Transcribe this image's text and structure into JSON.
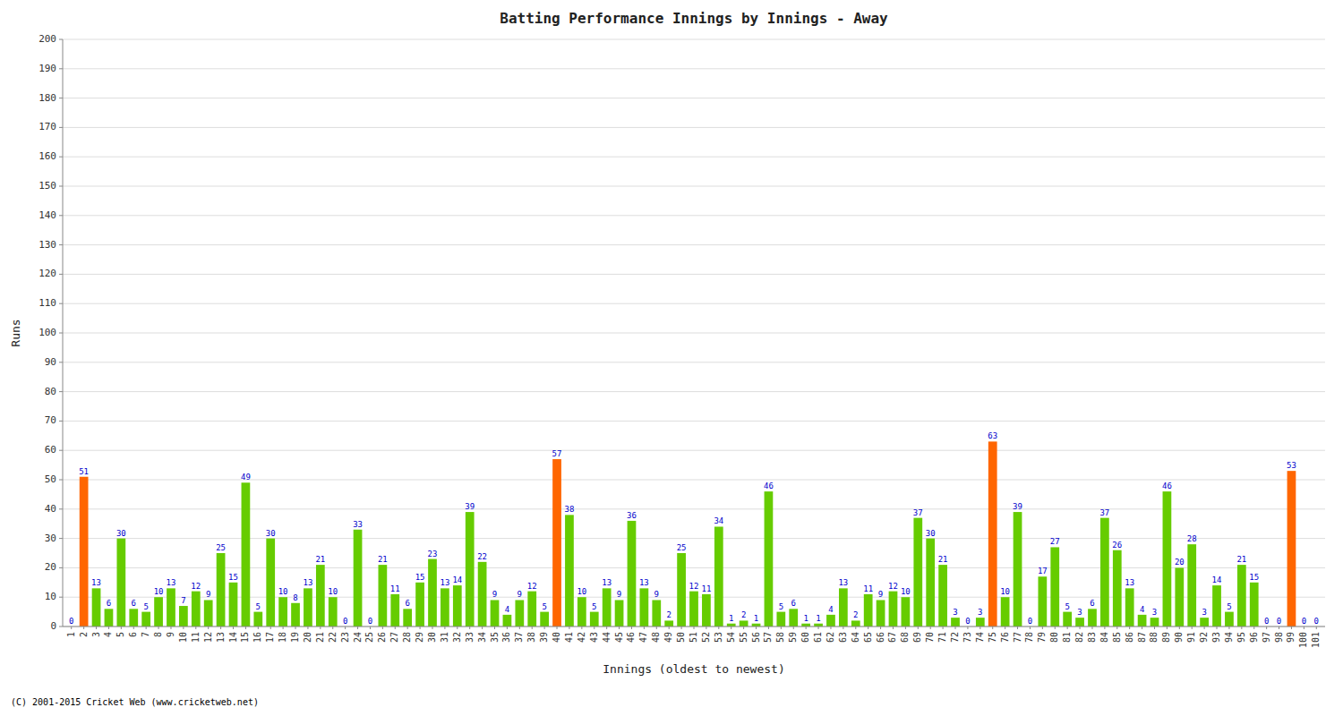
{
  "chart_data": {
    "type": "bar",
    "title": "Batting Performance Innings by Innings - Away",
    "xlabel": "Innings (oldest to newest)",
    "ylabel": "Runs",
    "annotations": [
      "(C) 2001-2015 Cricket Web (www.cricketweb.net)"
    ],
    "categories": [
      "1",
      "2",
      "3",
      "4",
      "5",
      "6",
      "7",
      "8",
      "9",
      "10",
      "11",
      "12",
      "13",
      "14",
      "15",
      "16",
      "17",
      "18",
      "19",
      "20",
      "21",
      "22",
      "23",
      "24",
      "25",
      "26",
      "27",
      "28",
      "29",
      "30",
      "31",
      "32",
      "33",
      "34",
      "35",
      "36",
      "37",
      "38",
      "39",
      "40",
      "41",
      "42",
      "43",
      "44",
      "45",
      "46",
      "47",
      "48",
      "49",
      "50",
      "51",
      "52",
      "53",
      "54",
      "55",
      "56",
      "57",
      "58",
      "59",
      "60",
      "61",
      "62",
      "63",
      "64",
      "65",
      "66",
      "67",
      "68",
      "69",
      "70",
      "71",
      "72",
      "73",
      "74",
      "75",
      "76",
      "77",
      "78",
      "79",
      "80",
      "81",
      "82",
      "83",
      "84",
      "85",
      "86",
      "87",
      "88",
      "89",
      "90",
      "91",
      "92",
      "93",
      "94",
      "95",
      "96",
      "97",
      "98",
      "99",
      "100",
      "101"
    ],
    "values": [
      0,
      51,
      13,
      6,
      30,
      6,
      5,
      10,
      13,
      7,
      12,
      9,
      25,
      15,
      49,
      5,
      30,
      10,
      8,
      13,
      21,
      10,
      0,
      33,
      0,
      21,
      11,
      6,
      15,
      23,
      13,
      14,
      39,
      22,
      9,
      4,
      9,
      12,
      5,
      57,
      38,
      10,
      5,
      13,
      9,
      36,
      13,
      9,
      2,
      25,
      12,
      11,
      34,
      1,
      2,
      1,
      46,
      5,
      6,
      1,
      1,
      4,
      13,
      2,
      11,
      9,
      12,
      10,
      37,
      30,
      21,
      3,
      0,
      3,
      63,
      10,
      39,
      0,
      17,
      27,
      5,
      3,
      6,
      37,
      26,
      13,
      4,
      3,
      46,
      20,
      28,
      3,
      14,
      5,
      21,
      15,
      0,
      0,
      53,
      0,
      0
    ],
    "colors": [
      "#66cc00",
      "#ff6600",
      "#66cc00",
      "#66cc00",
      "#66cc00",
      "#66cc00",
      "#66cc00",
      "#66cc00",
      "#66cc00",
      "#66cc00",
      "#66cc00",
      "#66cc00",
      "#66cc00",
      "#66cc00",
      "#66cc00",
      "#66cc00",
      "#66cc00",
      "#66cc00",
      "#66cc00",
      "#66cc00",
      "#66cc00",
      "#66cc00",
      "#66cc00",
      "#66cc00",
      "#ff6600",
      "#66cc00",
      "#66cc00",
      "#66cc00",
      "#66cc00",
      "#66cc00",
      "#66cc00",
      "#66cc00",
      "#66cc00",
      "#66cc00",
      "#66cc00",
      "#66cc00",
      "#66cc00",
      "#66cc00",
      "#66cc00",
      "#ff6600",
      "#66cc00",
      "#66cc00",
      "#66cc00",
      "#66cc00",
      "#66cc00",
      "#66cc00",
      "#66cc00",
      "#66cc00",
      "#66cc00",
      "#66cc00",
      "#66cc00",
      "#66cc00",
      "#66cc00",
      "#66cc00",
      "#66cc00",
      "#66cc00",
      "#66cc00",
      "#66cc00",
      "#66cc00",
      "#66cc00",
      "#66cc00",
      "#66cc00",
      "#66cc00",
      "#66cc00",
      "#66cc00",
      "#66cc00",
      "#66cc00",
      "#66cc00",
      "#66cc00",
      "#66cc00",
      "#66cc00",
      "#66cc00",
      "#66cc00",
      "#66cc00",
      "#ff6600",
      "#66cc00",
      "#66cc00",
      "#66cc00",
      "#66cc00",
      "#66cc00",
      "#66cc00",
      "#66cc00",
      "#66cc00",
      "#66cc00",
      "#66cc00",
      "#66cc00",
      "#66cc00",
      "#66cc00",
      "#66cc00",
      "#66cc00",
      "#66cc00",
      "#66cc00",
      "#66cc00",
      "#66cc00",
      "#66cc00",
      "#66cc00",
      "#66cc00",
      "#ff6600",
      "#ff6600",
      "#66cc00",
      "#ff6600"
    ],
    "ylim": [
      0,
      200
    ],
    "yticks": [
      0,
      10,
      20,
      30,
      40,
      50,
      60,
      70,
      80,
      90,
      100,
      110,
      120,
      130,
      140,
      150,
      160,
      170,
      180,
      190,
      200
    ],
    "grid": true,
    "data_labels": true
  }
}
